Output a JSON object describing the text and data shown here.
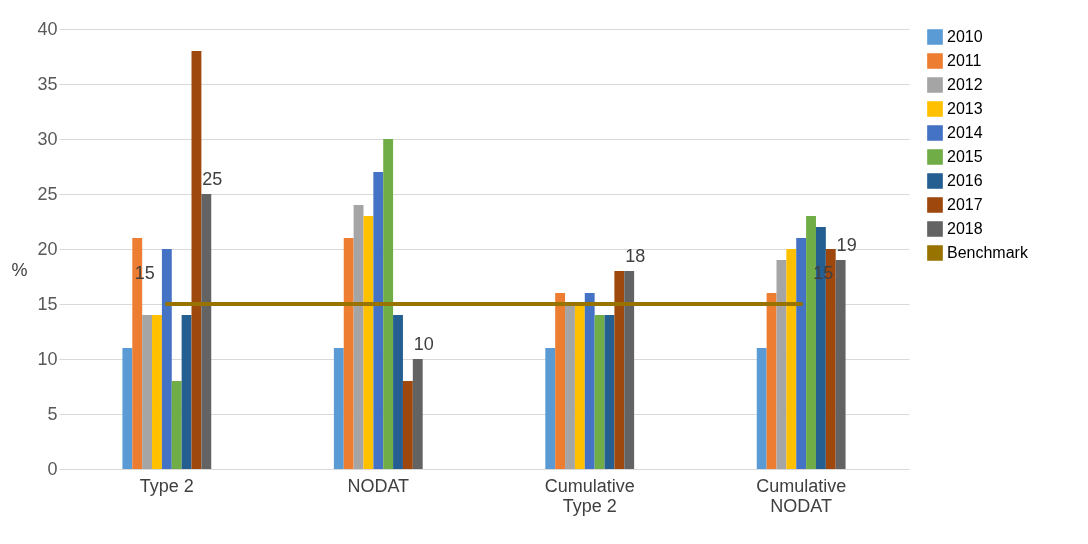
{
  "chart_data": {
    "type": "bar",
    "ylabel": "%",
    "categories": [
      "Type 2",
      "NODAT",
      "Cumulative Type 2",
      "Cumulative NODAT"
    ],
    "ylim": [
      0,
      40
    ],
    "yticks": [
      0,
      5,
      10,
      15,
      20,
      25,
      30,
      35,
      40
    ],
    "grid": "y",
    "legend": "right",
    "series": [
      {
        "name": "2010",
        "color": "#5b9bd5",
        "values": [
          11,
          11,
          11,
          11
        ]
      },
      {
        "name": "2011",
        "color": "#ed7d31",
        "values": [
          21,
          21,
          16,
          16
        ]
      },
      {
        "name": "2012",
        "color": "#a5a5a5",
        "values": [
          14,
          24,
          15,
          19
        ]
      },
      {
        "name": "2013",
        "color": "#ffc000",
        "values": [
          14,
          23,
          15,
          20
        ]
      },
      {
        "name": "2014",
        "color": "#4472c4",
        "values": [
          20,
          27,
          16,
          21
        ]
      },
      {
        "name": "2015",
        "color": "#70ad47",
        "values": [
          8,
          30,
          14,
          23
        ]
      },
      {
        "name": "2016",
        "color": "#255e91",
        "values": [
          14,
          14,
          14,
          22
        ]
      },
      {
        "name": "2017",
        "color": "#9e480e",
        "values": [
          38,
          8,
          18,
          20
        ]
      },
      {
        "name": "2018",
        "color": "#636363",
        "values": [
          25,
          10,
          18,
          19
        ],
        "value_labels": [
          "25",
          "10",
          "18",
          "19"
        ]
      },
      {
        "name": "Benchmark",
        "type": "line",
        "color": "#997300",
        "values": [
          15,
          15,
          15,
          15
        ],
        "value_labels": [
          "15",
          null,
          null,
          "15"
        ]
      }
    ]
  }
}
